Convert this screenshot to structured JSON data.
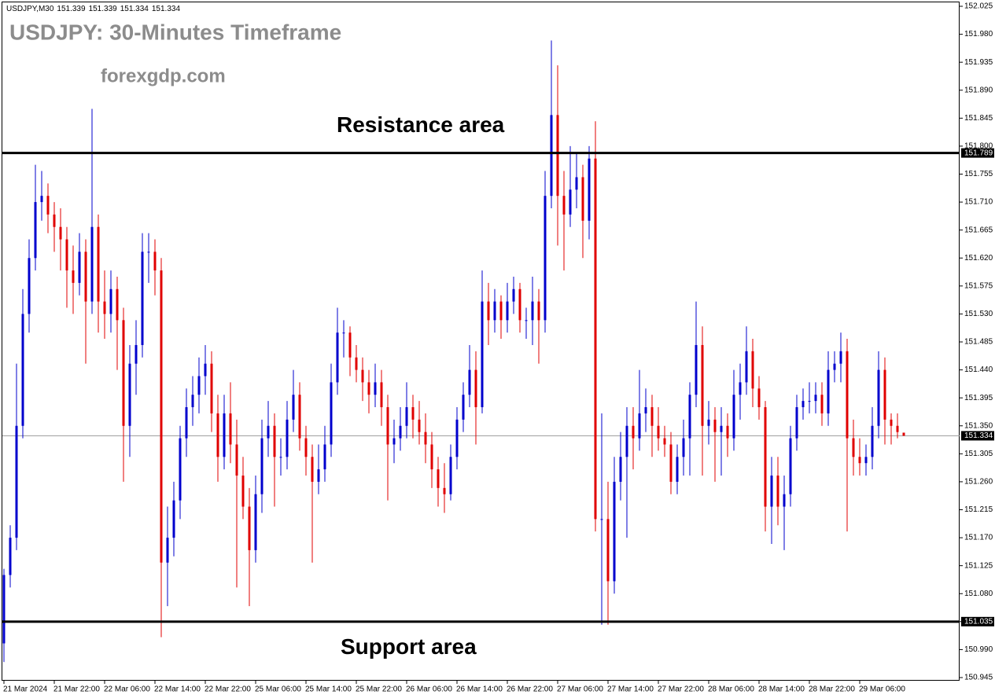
{
  "chart_data": {
    "type": "candlestick",
    "title": "USDJPY: 30-Minutes Timeframe",
    "subtitle": "forexgdp.com",
    "info": {
      "symbol": "USDJPY,M30",
      "values": [
        151.339,
        151.339,
        151.334,
        151.334
      ]
    },
    "up_color": "#0000cd",
    "down_color": "#e00000",
    "ylim": [
      150.945,
      152.025
    ],
    "yticks": [
      150.945,
      {
        "value": 150.99,
        "label": "150.990"
      },
      151.035,
      {
        "value": 151.08,
        "label": "151.080"
      },
      151.125,
      {
        "value": 151.17,
        "label": "151.170"
      },
      151.215,
      {
        "value": 151.26,
        "label": "151.260"
      },
      151.305,
      {
        "value": 151.35,
        "label": "151.350"
      },
      151.395,
      {
        "value": 151.44,
        "label": "151.440"
      },
      151.485,
      {
        "value": 151.53,
        "label": "151.530"
      },
      151.575,
      {
        "value": 151.62,
        "label": "151.620"
      },
      151.665,
      {
        "value": 151.71,
        "label": "151.710"
      },
      151.755,
      {
        "value": 151.8,
        "label": "151.800"
      },
      151.845,
      {
        "value": 151.89,
        "label": "151.890"
      },
      151.935,
      {
        "value": 151.98,
        "label": "151.980"
      },
      152.025
    ],
    "levels": [
      {
        "value": 151.789,
        "label": "Resistance area"
      },
      {
        "value": 151.035,
        "label": "Support area"
      }
    ],
    "current_price": 151.334,
    "categories": [
      "21 Mar 2024",
      null,
      null,
      null,
      null,
      null,
      null,
      null,
      "21 Mar 22:00",
      null,
      null,
      null,
      null,
      null,
      null,
      null,
      "22 Mar 06:00",
      null,
      null,
      null,
      null,
      null,
      null,
      null,
      "22 Mar 14:00",
      null,
      null,
      null,
      null,
      null,
      null,
      null,
      "22 Mar 22:00",
      null,
      null,
      null,
      null,
      null,
      null,
      null,
      "25 Mar 06:00",
      null,
      null,
      null,
      null,
      null,
      null,
      null,
      "25 Mar 14:00",
      null,
      null,
      null,
      null,
      null,
      null,
      null,
      "25 Mar 22:00",
      null,
      null,
      null,
      null,
      null,
      null,
      null,
      "26 Mar 06:00",
      null,
      null,
      null,
      null,
      null,
      null,
      null,
      "26 Mar 14:00",
      null,
      null,
      null,
      null,
      null,
      null,
      null,
      "26 Mar 22:00",
      null,
      null,
      null,
      null,
      null,
      null,
      null,
      "27 Mar 06:00",
      null,
      null,
      null,
      null,
      null,
      null,
      null,
      "27 Mar 14:00",
      null,
      null,
      null,
      null,
      null,
      null,
      null,
      "27 Mar 22:00",
      null,
      null,
      null,
      null,
      null,
      null,
      null,
      "28 Mar 06:00",
      null,
      null,
      null,
      null,
      null,
      null,
      null,
      "28 Mar 14:00",
      null,
      null,
      null,
      null,
      null,
      null,
      null,
      "28 Mar 22:00",
      null,
      null,
      null,
      null,
      null,
      null,
      null,
      "29 Mar 06:00",
      null,
      null,
      null,
      null,
      null,
      null,
      null
    ],
    "ohlc": [
      [
        151.0,
        151.12,
        150.97,
        151.11
      ],
      [
        151.11,
        151.19,
        151.09,
        151.17
      ],
      [
        151.17,
        151.45,
        151.15,
        151.35
      ],
      [
        151.35,
        151.57,
        151.33,
        151.53
      ],
      [
        151.53,
        151.65,
        151.5,
        151.62
      ],
      [
        151.62,
        151.77,
        151.6,
        151.71
      ],
      [
        151.71,
        151.76,
        151.68,
        151.72
      ],
      [
        151.72,
        151.74,
        151.66,
        151.69
      ],
      [
        151.69,
        151.71,
        151.63,
        151.67
      ],
      [
        151.67,
        151.7,
        151.6,
        151.65
      ],
      [
        151.65,
        151.67,
        151.54,
        151.6
      ],
      [
        151.6,
        151.64,
        151.53,
        151.58
      ],
      [
        151.58,
        151.66,
        151.56,
        151.63
      ],
      [
        151.63,
        151.65,
        151.45,
        151.55
      ],
      [
        151.55,
        151.86,
        151.53,
        151.67
      ],
      [
        151.67,
        151.69,
        151.5,
        151.55
      ],
      [
        151.55,
        151.6,
        151.49,
        151.53
      ],
      [
        151.53,
        151.6,
        151.5,
        151.57
      ],
      [
        151.57,
        151.59,
        151.44,
        151.52
      ],
      [
        151.52,
        151.54,
        151.26,
        151.35
      ],
      [
        151.35,
        151.48,
        151.3,
        151.45
      ],
      [
        151.45,
        151.52,
        151.4,
        151.48
      ],
      [
        151.48,
        151.66,
        151.46,
        151.63
      ],
      [
        151.63,
        151.66,
        151.58,
        151.63
      ],
      [
        151.63,
        151.65,
        151.56,
        151.6
      ],
      [
        151.6,
        151.62,
        151.01,
        151.13
      ],
      [
        151.13,
        151.22,
        151.06,
        151.17
      ],
      [
        151.17,
        151.26,
        151.14,
        151.23
      ],
      [
        151.23,
        151.35,
        151.2,
        151.33
      ],
      [
        151.33,
        151.41,
        151.3,
        151.38
      ],
      [
        151.38,
        151.43,
        151.35,
        151.4
      ],
      [
        151.4,
        151.46,
        151.37,
        151.43
      ],
      [
        151.43,
        151.48,
        151.4,
        151.45
      ],
      [
        151.45,
        151.47,
        151.34,
        151.37
      ],
      [
        151.37,
        151.4,
        151.26,
        151.3
      ],
      [
        151.3,
        151.4,
        151.28,
        151.37
      ],
      [
        151.37,
        151.42,
        151.29,
        151.32
      ],
      [
        151.32,
        151.36,
        151.09,
        151.27
      ],
      [
        151.27,
        151.3,
        151.2,
        151.22
      ],
      [
        151.22,
        151.25,
        151.06,
        151.15
      ],
      [
        151.15,
        151.27,
        151.13,
        151.24
      ],
      [
        151.24,
        151.36,
        151.21,
        151.33
      ],
      [
        151.33,
        151.39,
        151.3,
        151.35
      ],
      [
        151.35,
        151.37,
        151.22,
        151.3
      ],
      [
        151.3,
        151.33,
        151.27,
        151.3
      ],
      [
        151.3,
        151.39,
        151.28,
        151.36
      ],
      [
        151.36,
        151.44,
        151.34,
        151.4
      ],
      [
        151.4,
        151.42,
        151.31,
        151.33
      ],
      [
        151.33,
        151.35,
        151.27,
        151.3
      ],
      [
        151.3,
        151.32,
        151.13,
        151.26
      ],
      [
        151.26,
        151.32,
        151.24,
        151.28
      ],
      [
        151.28,
        151.35,
        151.26,
        151.32
      ],
      [
        151.32,
        151.45,
        151.3,
        151.42
      ],
      [
        151.42,
        151.54,
        151.4,
        151.5
      ],
      [
        151.5,
        151.52,
        151.46,
        151.5
      ],
      [
        151.5,
        151.51,
        151.43,
        151.46
      ],
      [
        151.46,
        151.48,
        151.42,
        151.44
      ],
      [
        151.44,
        151.46,
        151.39,
        151.42
      ],
      [
        151.42,
        151.44,
        151.37,
        151.4
      ],
      [
        151.4,
        151.45,
        151.38,
        151.42
      ],
      [
        151.42,
        151.44,
        151.35,
        151.38
      ],
      [
        151.38,
        151.4,
        151.23,
        151.32
      ],
      [
        151.32,
        151.36,
        151.29,
        151.33
      ],
      [
        151.33,
        151.38,
        151.31,
        151.35
      ],
      [
        151.35,
        151.42,
        151.33,
        151.38
      ],
      [
        151.38,
        151.4,
        151.33,
        151.36
      ],
      [
        151.36,
        151.39,
        151.32,
        151.34
      ],
      [
        151.34,
        151.37,
        151.29,
        151.32
      ],
      [
        151.32,
        151.34,
        151.25,
        151.28
      ],
      [
        151.28,
        151.3,
        151.22,
        151.25
      ],
      [
        151.25,
        151.29,
        151.21,
        151.24
      ],
      [
        151.24,
        151.32,
        151.23,
        151.3
      ],
      [
        151.3,
        151.38,
        151.28,
        151.36
      ],
      [
        151.36,
        151.42,
        151.34,
        151.4
      ],
      [
        151.4,
        151.48,
        151.38,
        151.44
      ],
      [
        151.44,
        151.47,
        151.32,
        151.38
      ],
      [
        151.38,
        151.6,
        151.37,
        151.55
      ],
      [
        151.55,
        151.58,
        151.48,
        151.52
      ],
      [
        151.52,
        151.57,
        151.5,
        151.55
      ],
      [
        151.55,
        151.56,
        151.49,
        151.52
      ],
      [
        151.52,
        151.58,
        151.5,
        151.55
      ],
      [
        151.55,
        151.59,
        151.53,
        151.57
      ],
      [
        151.57,
        151.58,
        151.5,
        151.52
      ],
      [
        151.52,
        151.54,
        151.49,
        151.52
      ],
      [
        151.52,
        151.59,
        151.48,
        151.55
      ],
      [
        151.55,
        151.57,
        151.45,
        151.52
      ],
      [
        151.52,
        151.76,
        151.5,
        151.72
      ],
      [
        151.72,
        151.97,
        151.7,
        151.85
      ],
      [
        151.85,
        151.93,
        151.64,
        151.72
      ],
      [
        151.72,
        151.76,
        151.6,
        151.69
      ],
      [
        151.69,
        151.8,
        151.67,
        151.73
      ],
      [
        151.73,
        151.79,
        151.7,
        151.75
      ],
      [
        151.75,
        151.77,
        151.62,
        151.68
      ],
      [
        151.68,
        151.8,
        151.65,
        151.78
      ],
      [
        151.78,
        151.84,
        151.18,
        151.2
      ],
      [
        151.2,
        151.37,
        151.03,
        151.2
      ],
      [
        151.2,
        151.26,
        151.03,
        151.1
      ],
      [
        151.1,
        151.3,
        151.08,
        151.26
      ],
      [
        151.26,
        151.34,
        151.23,
        151.3
      ],
      [
        151.3,
        151.38,
        151.17,
        151.35
      ],
      [
        151.35,
        151.38,
        151.28,
        151.33
      ],
      [
        151.33,
        151.44,
        151.31,
        151.37
      ],
      [
        151.37,
        151.41,
        151.34,
        151.38
      ],
      [
        151.38,
        151.4,
        151.3,
        151.35
      ],
      [
        151.35,
        151.38,
        151.31,
        151.33
      ],
      [
        151.33,
        151.35,
        151.3,
        151.32
      ],
      [
        151.32,
        151.34,
        151.24,
        151.26
      ],
      [
        151.26,
        151.32,
        151.24,
        151.3
      ],
      [
        151.3,
        151.36,
        151.27,
        151.33
      ],
      [
        151.33,
        151.42,
        151.27,
        151.4
      ],
      [
        151.4,
        151.55,
        151.38,
        151.48
      ],
      [
        151.48,
        151.51,
        151.27,
        151.35
      ],
      [
        151.35,
        151.39,
        151.32,
        151.36
      ],
      [
        151.36,
        151.38,
        151.26,
        151.34
      ],
      [
        151.34,
        151.38,
        151.27,
        151.35
      ],
      [
        151.35,
        151.37,
        151.3,
        151.33
      ],
      [
        151.33,
        151.44,
        151.31,
        151.4
      ],
      [
        151.4,
        151.45,
        151.36,
        151.42
      ],
      [
        151.42,
        151.51,
        151.4,
        151.47
      ],
      [
        151.47,
        151.49,
        151.38,
        151.41
      ],
      [
        151.41,
        151.43,
        151.36,
        151.38
      ],
      [
        151.38,
        151.39,
        151.18,
        151.22
      ],
      [
        151.22,
        151.3,
        151.16,
        151.27
      ],
      [
        151.27,
        151.3,
        151.19,
        151.22
      ],
      [
        151.22,
        151.27,
        151.15,
        151.24
      ],
      [
        151.24,
        151.35,
        151.22,
        151.33
      ],
      [
        151.33,
        151.4,
        151.31,
        151.38
      ],
      [
        151.38,
        151.41,
        151.36,
        151.39
      ],
      [
        151.39,
        151.42,
        151.37,
        151.39
      ],
      [
        151.39,
        151.42,
        151.37,
        151.4
      ],
      [
        151.4,
        151.42,
        151.35,
        151.37
      ],
      [
        151.37,
        151.47,
        151.35,
        151.44
      ],
      [
        151.44,
        151.47,
        151.42,
        151.45
      ],
      [
        151.45,
        151.5,
        151.42,
        151.47
      ],
      [
        151.47,
        151.49,
        151.18,
        151.33
      ],
      [
        151.33,
        151.36,
        151.27,
        151.3
      ],
      [
        151.3,
        151.33,
        151.27,
        151.29
      ],
      [
        151.29,
        151.32,
        151.27,
        151.3
      ],
      [
        151.3,
        151.38,
        151.28,
        151.35
      ],
      [
        151.35,
        151.47,
        151.33,
        151.44
      ],
      [
        151.44,
        151.46,
        151.32,
        151.36
      ],
      [
        151.36,
        151.37,
        151.32,
        151.35
      ],
      [
        151.35,
        151.37,
        151.33,
        151.34
      ],
      [
        151.339,
        151.339,
        151.334,
        151.334
      ]
    ]
  }
}
